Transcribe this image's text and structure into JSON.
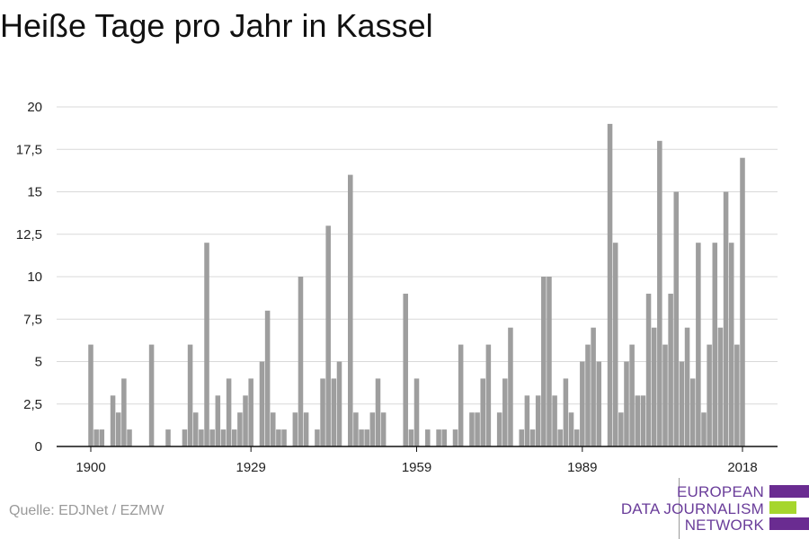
{
  "header": {
    "title": "Heiße Tage pro Jahr in Kassel"
  },
  "footer": {
    "source": "Quelle: EDJNet / EZMW"
  },
  "logo": {
    "lines": [
      "EUROPEAN",
      "DATA JOURNALISM",
      "NETWORK"
    ],
    "text_color": "#6a3d9a",
    "bar_colors": [
      "#6a2c91",
      "#a6d62d",
      "#6a2c91"
    ]
  },
  "chart_data": {
    "type": "bar",
    "title": "Heiße Tage pro Jahr in Kassel",
    "xlabel": "",
    "ylabel": "",
    "ylim": [
      0,
      20
    ],
    "yticks": [
      0,
      2.5,
      5,
      7.5,
      10,
      12.5,
      15,
      17.5,
      20
    ],
    "ytick_labels": [
      "0",
      "2,5",
      "5",
      "7,5",
      "10",
      "12,5",
      "15",
      "17,5",
      "20"
    ],
    "xticks": [
      1900,
      1929,
      1959,
      1989,
      2018
    ],
    "xtick_labels": [
      "1900",
      "1929",
      "1959",
      "1989",
      "2018"
    ],
    "grid": true,
    "bar_color": "#9e9e9e",
    "categories": [
      1900,
      1901,
      1902,
      1903,
      1904,
      1905,
      1906,
      1907,
      1908,
      1909,
      1910,
      1911,
      1912,
      1913,
      1914,
      1915,
      1916,
      1917,
      1918,
      1919,
      1920,
      1921,
      1922,
      1923,
      1924,
      1925,
      1926,
      1927,
      1928,
      1929,
      1930,
      1931,
      1932,
      1933,
      1934,
      1935,
      1936,
      1937,
      1938,
      1939,
      1940,
      1941,
      1942,
      1943,
      1944,
      1945,
      1946,
      1947,
      1948,
      1949,
      1950,
      1951,
      1952,
      1953,
      1954,
      1955,
      1956,
      1957,
      1958,
      1959,
      1960,
      1961,
      1962,
      1963,
      1964,
      1965,
      1966,
      1967,
      1968,
      1969,
      1970,
      1971,
      1972,
      1973,
      1974,
      1975,
      1976,
      1977,
      1978,
      1979,
      1980,
      1981,
      1982,
      1983,
      1984,
      1985,
      1986,
      1987,
      1988,
      1989,
      1990,
      1991,
      1992,
      1993,
      1994,
      1995,
      1996,
      1997,
      1998,
      1999,
      2000,
      2001,
      2002,
      2003,
      2004,
      2005,
      2006,
      2007,
      2008,
      2009,
      2010,
      2011,
      2012,
      2013,
      2014,
      2015,
      2016,
      2017,
      2018
    ],
    "values": [
      6,
      1,
      1,
      0,
      3,
      2,
      4,
      1,
      0,
      0,
      0,
      6,
      0,
      0,
      1,
      0,
      0,
      1,
      6,
      2,
      1,
      12,
      1,
      3,
      1,
      4,
      1,
      2,
      3,
      4,
      0,
      5,
      8,
      2,
      1,
      1,
      0,
      2,
      10,
      2,
      0,
      1,
      4,
      13,
      4,
      5,
      0,
      16,
      2,
      1,
      1,
      2,
      4,
      2,
      0,
      0,
      0,
      9,
      1,
      4,
      0,
      1,
      0,
      1,
      1,
      0,
      1,
      6,
      0,
      2,
      2,
      4,
      6,
      0,
      2,
      4,
      7,
      0,
      1,
      3,
      1,
      3,
      10,
      10,
      3,
      1,
      4,
      2,
      1,
      5,
      6,
      7,
      5,
      0,
      19,
      12,
      2,
      5,
      6,
      3,
      3,
      9,
      7,
      18,
      6,
      9,
      15,
      5,
      7,
      4,
      12,
      2,
      6,
      12,
      7,
      15,
      12,
      6,
      17
    ]
  }
}
